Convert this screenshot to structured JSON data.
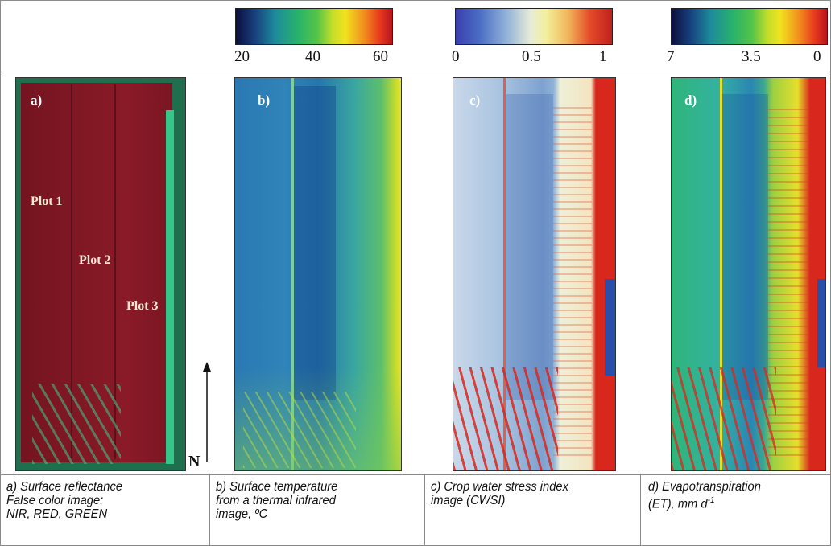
{
  "colorbars": {
    "temperature": {
      "ticks": [
        "20",
        "40",
        "60"
      ]
    },
    "cwsi": {
      "ticks": [
        "0",
        "0.5",
        "1"
      ]
    },
    "et": {
      "ticks": [
        "7",
        "3.5",
        "0"
      ]
    }
  },
  "panels": {
    "a": {
      "label": "a)",
      "plots": [
        "Plot 1",
        "Plot 2",
        "Plot 3"
      ]
    },
    "b": {
      "label": "b)"
    },
    "c": {
      "label": "c)"
    },
    "d": {
      "label": "d)"
    }
  },
  "north_label": "N",
  "captions": {
    "a": {
      "line1": "a) Surface reflectance",
      "line2": "False color image:",
      "line3": "NIR, RED, GREEN"
    },
    "b": {
      "line1": "b) Surface temperature",
      "line2": "from a thermal infrared",
      "line3": "image, ºC"
    },
    "c": {
      "line1": "c) Crop water stress index",
      "line2": "image (CWSI)"
    },
    "d": {
      "line1": "d) Evapotranspiration",
      "line2_prefix": "(ET), mm d",
      "line2_sup": "-1"
    }
  },
  "colors": {
    "field_red": "#7e1520",
    "border_green": "#2fb07a",
    "thermal_blue": "#2f7fb8",
    "cwsi_red": "#d8281e"
  }
}
